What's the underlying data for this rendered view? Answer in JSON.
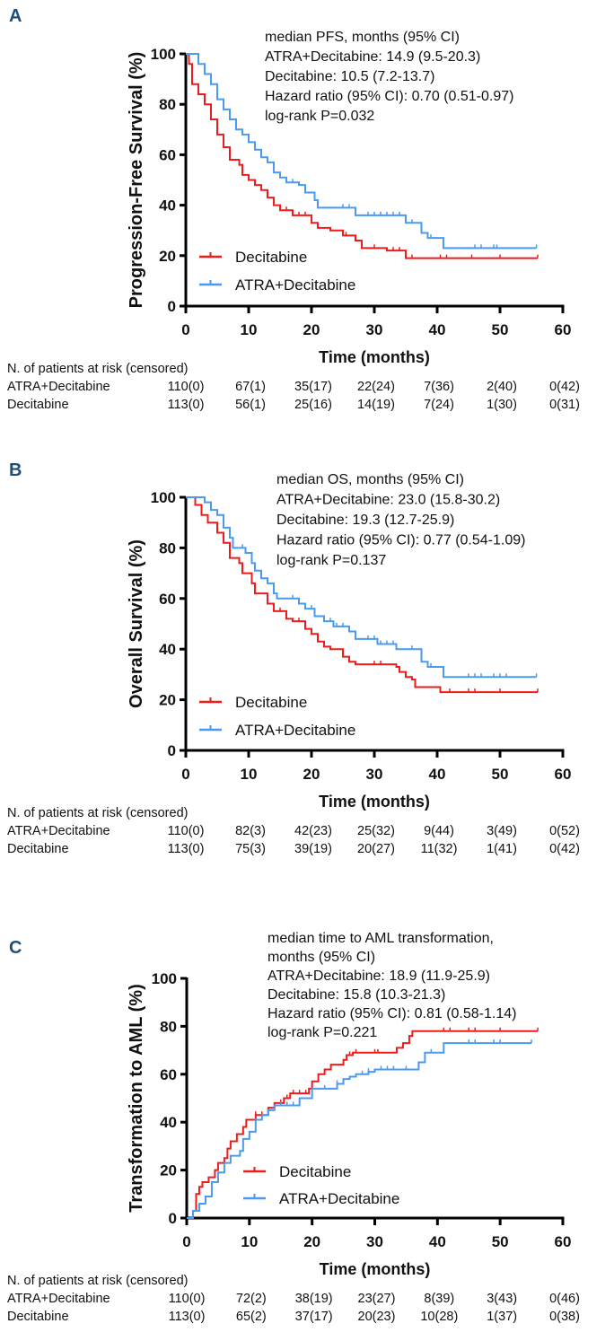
{
  "colors": {
    "decitabine": "#ee1c1c",
    "atra": "#4a9af0",
    "panel_label": "#1f4e79"
  },
  "chart_data": [
    {
      "type": "line",
      "panel": "A",
      "ylabel": "Progression-Free Survival (%)",
      "xlabel": "Time (months)",
      "xlim": [
        0,
        60
      ],
      "ylim": [
        0,
        100
      ],
      "xticks": [
        "0",
        "10",
        "20",
        "30",
        "40",
        "50",
        "60"
      ],
      "yticks": [
        "0",
        "20",
        "40",
        "60",
        "80",
        "100"
      ],
      "annotation": [
        "median PFS, months (95% CI)",
        "ATRA+Decitabine: 14.9 (9.5-20.3)",
        "Decitabine: 10.5 (7.2-13.7)",
        "Hazard ratio (95% CI): 0.70 (0.51-0.97)",
        "log-rank P=0.032"
      ],
      "legend": [
        "Decitabine",
        "ATRA+Decitabine"
      ],
      "legend_placement": "bottom-left",
      "series": [
        {
          "name": "Decitabine",
          "steps": [
            [
              0,
              100
            ],
            [
              0.5,
              96
            ],
            [
              1,
              88
            ],
            [
              2,
              84
            ],
            [
              3,
              80
            ],
            [
              4,
              74
            ],
            [
              5,
              68
            ],
            [
              6,
              63
            ],
            [
              7,
              58
            ],
            [
              8.5,
              56
            ],
            [
              9,
              52
            ],
            [
              10,
              50
            ],
            [
              11,
              48
            ],
            [
              12,
              46
            ],
            [
              13,
              43
            ],
            [
              14,
              40
            ],
            [
              15,
              38
            ],
            [
              17,
              36
            ],
            [
              20,
              33
            ],
            [
              21,
              31
            ],
            [
              23,
              30
            ],
            [
              25,
              28
            ],
            [
              27,
              26
            ],
            [
              28,
              23
            ],
            [
              32,
              22
            ],
            [
              35,
              19
            ],
            [
              56,
              19
            ]
          ],
          "censored": [
            16,
            18,
            19,
            25.5,
            30,
            33,
            34,
            36,
            40.5,
            41.5,
            45.5,
            50,
            56
          ]
        },
        {
          "name": "ATRA+Decitabine",
          "steps": [
            [
              0,
              100
            ],
            [
              1,
              100
            ],
            [
              2,
              96
            ],
            [
              3,
              92
            ],
            [
              4,
              88
            ],
            [
              5,
              82
            ],
            [
              6,
              78
            ],
            [
              7,
              74
            ],
            [
              8,
              70
            ],
            [
              9,
              68
            ],
            [
              10,
              65
            ],
            [
              11,
              62
            ],
            [
              12,
              59
            ],
            [
              13,
              57
            ],
            [
              14,
              53
            ],
            [
              15,
              51
            ],
            [
              16,
              49
            ],
            [
              18,
              48
            ],
            [
              19,
              45
            ],
            [
              20.5,
              42
            ],
            [
              21,
              39
            ],
            [
              27,
              36
            ],
            [
              35,
              33
            ],
            [
              37.5,
              29
            ],
            [
              38.5,
              27
            ],
            [
              41,
              23
            ],
            [
              55.8,
              23
            ]
          ],
          "censored": [
            17,
            18,
            25,
            26,
            29,
            30,
            31,
            32,
            33,
            34,
            36,
            39,
            46,
            47,
            49,
            49.5,
            55.8
          ]
        }
      ],
      "risk_table": {
        "title": "N. of patients at risk (censored)",
        "rows": [
          {
            "label": "ATRA+Decitabine",
            "values": [
              "110(0)",
              "67(1)",
              "35(17)",
              "22(24)",
              "7(36)",
              "2(40)",
              "0(42)"
            ]
          },
          {
            "label": "Decitabine",
            "values": [
              "113(0)",
              "56(1)",
              "25(16)",
              "14(19)",
              "7(24)",
              "1(30)",
              "0(31)"
            ]
          }
        ]
      }
    },
    {
      "type": "line",
      "panel": "B",
      "ylabel": "Overall  Survival (%)",
      "xlabel": "Time (months)",
      "xlim": [
        0,
        60
      ],
      "ylim": [
        0,
        100
      ],
      "xticks": [
        "0",
        "10",
        "20",
        "30",
        "40",
        "50",
        "60"
      ],
      "yticks": [
        "0",
        "20",
        "40",
        "60",
        "80",
        "100"
      ],
      "annotation": [
        "median OS, months (95% CI)",
        "ATRA+Decitabine: 23.0 (15.8-30.2)",
        "Decitabine: 19.3 (12.7-25.9)",
        "Hazard ratio (95% CI): 0.77 (0.54-1.09)",
        "log-rank P=0.137"
      ],
      "legend": [
        "Decitabine",
        "ATRA+Decitabine"
      ],
      "legend_placement": "bottom-left",
      "series": [
        {
          "name": "Decitabine",
          "steps": [
            [
              0,
              100
            ],
            [
              0.5,
              100
            ],
            [
              1.5,
              97
            ],
            [
              2.5,
              93
            ],
            [
              3.5,
              90
            ],
            [
              5,
              86
            ],
            [
              6,
              82
            ],
            [
              7,
              76
            ],
            [
              8.5,
              74
            ],
            [
              9,
              70
            ],
            [
              10.5,
              66
            ],
            [
              11,
              62
            ],
            [
              13,
              58
            ],
            [
              14,
              55
            ],
            [
              16,
              52
            ],
            [
              17,
              51
            ],
            [
              19,
              48
            ],
            [
              20,
              46
            ],
            [
              21,
              43
            ],
            [
              22,
              41
            ],
            [
              23,
              40
            ],
            [
              25,
              37
            ],
            [
              26,
              35
            ],
            [
              27,
              34
            ],
            [
              33.5,
              33
            ],
            [
              34,
              31
            ],
            [
              35,
              29
            ],
            [
              36,
              28
            ],
            [
              36.5,
              25
            ],
            [
              40.5,
              23
            ],
            [
              56,
              23
            ]
          ],
          "censored": [
            14,
            15,
            18,
            19,
            25,
            26,
            30,
            31,
            40.5,
            42,
            45,
            46,
            50,
            56
          ]
        },
        {
          "name": "ATRA+Decitabine",
          "steps": [
            [
              0,
              100
            ],
            [
              1,
              100
            ],
            [
              3,
              98
            ],
            [
              4,
              95
            ],
            [
              5,
              93
            ],
            [
              6,
              88
            ],
            [
              7,
              84
            ],
            [
              7.5,
              80
            ],
            [
              9.5,
              78
            ],
            [
              10.5,
              74
            ],
            [
              11,
              71
            ],
            [
              12,
              68
            ],
            [
              13,
              66
            ],
            [
              14,
              62
            ],
            [
              14.5,
              60
            ],
            [
              18,
              58
            ],
            [
              19,
              56
            ],
            [
              20.5,
              53
            ],
            [
              22,
              51
            ],
            [
              23.5,
              49
            ],
            [
              26,
              47
            ],
            [
              27,
              44
            ],
            [
              30.5,
              42
            ],
            [
              33.5,
              40
            ],
            [
              37.5,
              35
            ],
            [
              38.5,
              33
            ],
            [
              41,
              29
            ],
            [
              55.8,
              29
            ]
          ],
          "censored": [
            9,
            13,
            17,
            19,
            20,
            23,
            24,
            25,
            29,
            30,
            31,
            32,
            33,
            36,
            39,
            45,
            46,
            47,
            49,
            50,
            51,
            55.8
          ]
        }
      ],
      "risk_table": {
        "title": "N. of patients at risk (censored)",
        "rows": [
          {
            "label": "ATRA+Decitabine",
            "values": [
              "110(0)",
              "82(3)",
              "42(23)",
              "25(32)",
              "9(44)",
              "3(49)",
              "0(52)"
            ]
          },
          {
            "label": "Decitabine",
            "values": [
              "113(0)",
              "75(3)",
              "39(19)",
              "20(27)",
              "11(32)",
              "1(41)",
              "0(42)"
            ]
          }
        ]
      }
    },
    {
      "type": "line",
      "panel": "C",
      "ylabel": "Transformation to AML  (%)",
      "xlabel": "Time (months)",
      "xlim": [
        0,
        60
      ],
      "ylim": [
        0,
        100
      ],
      "xticks": [
        "0",
        "10",
        "20",
        "30",
        "40",
        "50",
        "60"
      ],
      "yticks": [
        "0",
        "20",
        "40",
        "60",
        "80",
        "100"
      ],
      "annotation": [
        "median time to AML transformation,",
        "months (95% CI)",
        "ATRA+Decitabine: 18.9 (11.9-25.9)",
        "Decitabine: 15.8 (10.3-21.3)",
        "Hazard ratio (95% CI): 0.81 (0.58-1.14)",
        "log-rank P=0.221"
      ],
      "legend": [
        "Decitabine",
        "ATRA+Decitabine"
      ],
      "legend_placement": "bottom-center",
      "series": [
        {
          "name": "Decitabine",
          "steps": [
            [
              0,
              0
            ],
            [
              1,
              3
            ],
            [
              1.5,
              10
            ],
            [
              2,
              13
            ],
            [
              2.5,
              15
            ],
            [
              3.5,
              17
            ],
            [
              4.5,
              20
            ],
            [
              5,
              23
            ],
            [
              6,
              25
            ],
            [
              6.5,
              29
            ],
            [
              7,
              32
            ],
            [
              8,
              35
            ],
            [
              9,
              38
            ],
            [
              9.5,
              41
            ],
            [
              11,
              43
            ],
            [
              13,
              46
            ],
            [
              14,
              48
            ],
            [
              15.5,
              50
            ],
            [
              16.5,
              52
            ],
            [
              19.5,
              54
            ],
            [
              20,
              57
            ],
            [
              21,
              60
            ],
            [
              22,
              62
            ],
            [
              23,
              64
            ],
            [
              25,
              66
            ],
            [
              25.5,
              68
            ],
            [
              26.5,
              69
            ],
            [
              33.5,
              71
            ],
            [
              34.5,
              73
            ],
            [
              35.5,
              76
            ],
            [
              36,
              78
            ],
            [
              56,
              78
            ]
          ],
          "censored": [
            11,
            12,
            15,
            16,
            17,
            18,
            19,
            26,
            27,
            30,
            30.5,
            41,
            42,
            45,
            46,
            50,
            56
          ]
        },
        {
          "name": "ATRA+Decitabine",
          "steps": [
            [
              0,
              0
            ],
            [
              1,
              3
            ],
            [
              2,
              6
            ],
            [
              3,
              9
            ],
            [
              4,
              15
            ],
            [
              5,
              19
            ],
            [
              6,
              23
            ],
            [
              7,
              26
            ],
            [
              8.5,
              28
            ],
            [
              9,
              33
            ],
            [
              10,
              36
            ],
            [
              11,
              41
            ],
            [
              12,
              43
            ],
            [
              13,
              45
            ],
            [
              14,
              47
            ],
            [
              18,
              50
            ],
            [
              20,
              54
            ],
            [
              24,
              56
            ],
            [
              25,
              58
            ],
            [
              26,
              59
            ],
            [
              27,
              60
            ],
            [
              29,
              61
            ],
            [
              30,
              62
            ],
            [
              37,
              65
            ],
            [
              38,
              69
            ],
            [
              41,
              73
            ],
            [
              55,
              73
            ]
          ],
          "censored": [
            15,
            16,
            17,
            22,
            24,
            28,
            29,
            31,
            32,
            33,
            35,
            39,
            45,
            46,
            49,
            50,
            55
          ]
        }
      ],
      "risk_table": {
        "title": "N. of patients at risk (censored)",
        "rows": [
          {
            "label": "ATRA+Decitabine",
            "values": [
              "110(0)",
              "72(2)",
              "38(19)",
              "23(27)",
              "8(39)",
              "3(43)",
              "0(46)"
            ]
          },
          {
            "label": "Decitabine",
            "values": [
              "113(0)",
              "65(2)",
              "37(17)",
              "20(23)",
              "10(28)",
              "1(37)",
              "0(38)"
            ]
          }
        ]
      }
    }
  ]
}
